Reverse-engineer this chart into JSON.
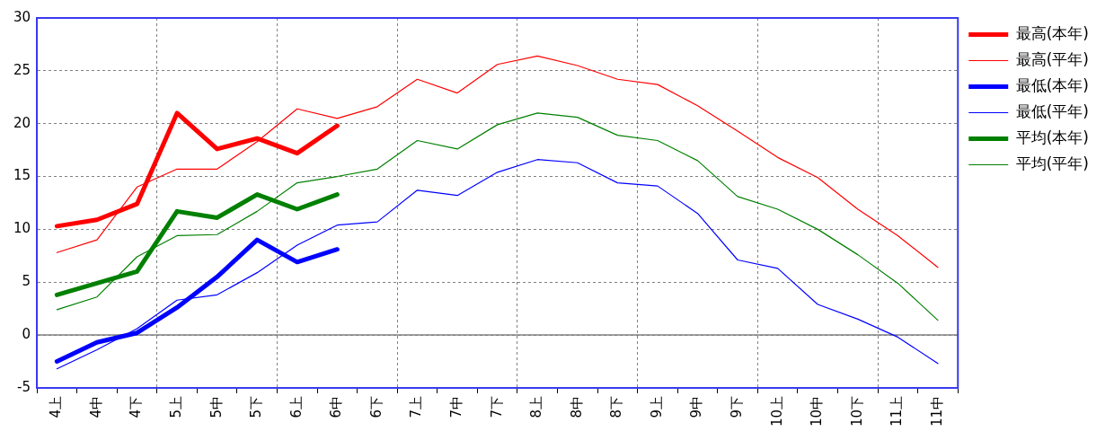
{
  "chart_data": {
    "type": "line",
    "categories": [
      "4上",
      "4中",
      "4下",
      "5上",
      "5中",
      "5下",
      "6上",
      "6中",
      "6下",
      "7上",
      "7中",
      "7下",
      "8上",
      "8中",
      "8下",
      "9上",
      "9中",
      "9下",
      "10上",
      "10中",
      "10下",
      "11上",
      "11中"
    ],
    "series": [
      {
        "name": "最高(本年)",
        "color": "#ff0000",
        "values": [
          10.3,
          10.9,
          12.4,
          21.0,
          17.6,
          18.6,
          17.2,
          19.8,
          null,
          null,
          null,
          null,
          null,
          null,
          null,
          null,
          null,
          null,
          null,
          null,
          null,
          null,
          null
        ]
      },
      {
        "name": "最高(平年)",
        "color": "#ff0000",
        "values": [
          7.8,
          9.0,
          14.0,
          15.7,
          15.7,
          18.3,
          21.4,
          20.5,
          21.6,
          24.2,
          22.9,
          25.6,
          26.4,
          25.5,
          24.2,
          23.7,
          21.7,
          19.3,
          16.8,
          14.9,
          11.9,
          9.4,
          6.4
        ]
      },
      {
        "name": "最低(本年)",
        "color": "#0000ff",
        "values": [
          -2.5,
          -0.7,
          0.2,
          2.6,
          5.5,
          9.0,
          6.9,
          8.1,
          null,
          null,
          null,
          null,
          null,
          null,
          null,
          null,
          null,
          null,
          null,
          null,
          null,
          null,
          null
        ]
      },
      {
        "name": "最低(平年)",
        "color": "#0000ff",
        "values": [
          -3.2,
          -1.4,
          0.6,
          3.3,
          3.8,
          5.9,
          8.5,
          10.4,
          10.7,
          13.7,
          13.2,
          15.4,
          16.6,
          16.3,
          14.4,
          14.1,
          11.5,
          7.1,
          6.3,
          2.9,
          1.5,
          -0.2,
          -2.7
        ]
      },
      {
        "name": "平均(本年)",
        "color": "#008000",
        "values": [
          3.8,
          4.9,
          6.0,
          11.7,
          11.1,
          13.3,
          11.9,
          13.3,
          null,
          null,
          null,
          null,
          null,
          null,
          null,
          null,
          null,
          null,
          null,
          null,
          null,
          null,
          null
        ]
      },
      {
        "name": "平均(平年)",
        "color": "#008000",
        "values": [
          2.4,
          3.6,
          7.4,
          9.4,
          9.5,
          11.7,
          14.4,
          15.0,
          15.7,
          18.4,
          17.6,
          19.9,
          21.0,
          20.6,
          18.9,
          18.4,
          16.5,
          13.1,
          11.9,
          10.0,
          7.6,
          4.9,
          1.4
        ]
      }
    ],
    "ylim": [
      -5,
      30
    ],
    "yticks": [
      -5,
      0,
      5,
      10,
      15,
      20,
      25,
      30
    ],
    "ref_lines": [
      {
        "axis": "y",
        "value": 0,
        "color": "#808080"
      }
    ],
    "grid": true,
    "legend": "right",
    "marker": "none",
    "line_style": "solid"
  }
}
